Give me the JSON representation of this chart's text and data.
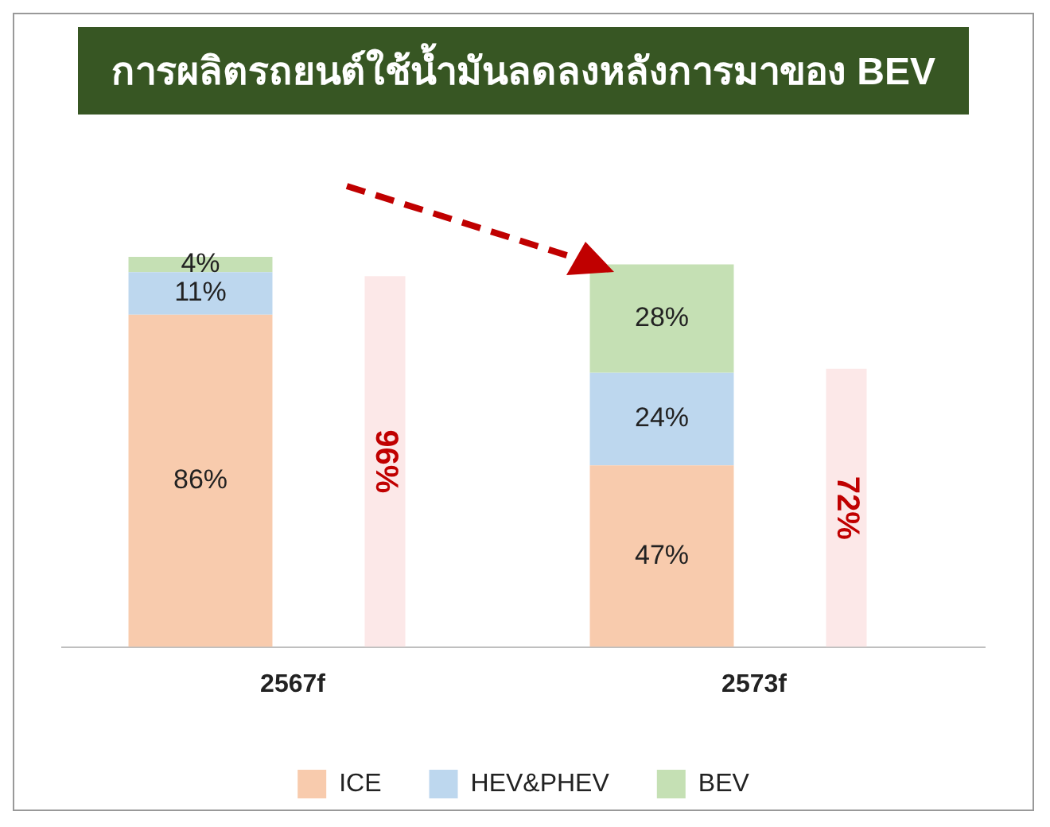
{
  "chart_data": {
    "type": "bar",
    "title": "การผลิตรถยนต์ใช้น้ำมันลดลงหลังการมาของ BEV",
    "categories": [
      "2567f",
      "2573f"
    ],
    "stacked": true,
    "legend": "bottom",
    "series": [
      {
        "name": "ICE",
        "color": "#f8cbad",
        "values": [
          86,
          47
        ],
        "value_labels": [
          "86%",
          "47%"
        ]
      },
      {
        "name": "HEV&PHEV",
        "color": "#bdd7ee",
        "values": [
          11,
          24
        ],
        "value_labels": [
          "11%",
          "24%"
        ]
      },
      {
        "name": "BEV",
        "color": "#c5e0b4",
        "values": [
          4,
          28
        ],
        "value_labels": [
          "4%",
          "28%"
        ]
      },
      {
        "axis": "y2",
        "color": "#fce8e8",
        "values": [
          96,
          72
        ],
        "value_labels": [
          "96%",
          "72%"
        ]
      }
    ]
  }
}
